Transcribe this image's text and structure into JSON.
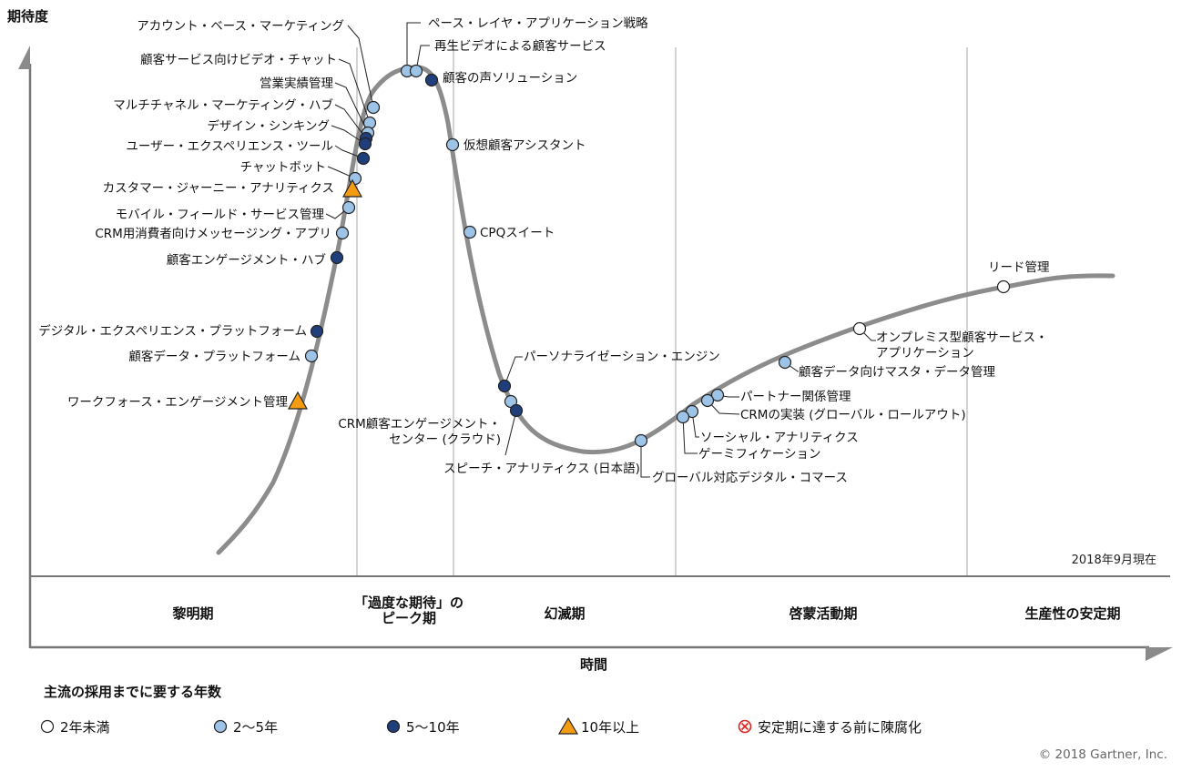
{
  "chart_data": {
    "type": "scatter",
    "title": "",
    "ylabel": "期待度",
    "xlabel": "時間",
    "as_of": "2018年9月現在",
    "copyright": "© 2018 Gartner, Inc.",
    "phases": [
      "黎明期",
      "「過度な期待」の\nピーク期",
      "幻滅期",
      "啓蒙活動期",
      "生産性の安定期"
    ],
    "legend_title": "主流の採用までに要する年数",
    "legend": [
      {
        "key": "lt2",
        "label": "2年未満"
      },
      {
        "key": "y2_5",
        "label": "2〜5年"
      },
      {
        "key": "y5_10",
        "label": "5〜10年"
      },
      {
        "key": "gt10",
        "label": "10年以上"
      },
      {
        "key": "obsolete",
        "label": "安定期に達する前に陳腐化"
      }
    ],
    "points": [
      {
        "name": "アカウント・ベース・マーケティング",
        "category": "y2_5"
      },
      {
        "name": "ペース・レイヤ・アプリケーション戦略",
        "category": "y2_5"
      },
      {
        "name": "再生ビデオによる顧客サービス",
        "category": "y2_5"
      },
      {
        "name": "顧客の声ソリューション",
        "category": "y5_10"
      },
      {
        "name": "顧客サービス向けビデオ・チャット",
        "category": "y2_5"
      },
      {
        "name": "営業実績管理",
        "category": "y2_5"
      },
      {
        "name": "マルチチャネル・マーケティング・ハブ",
        "category": "y5_10"
      },
      {
        "name": "デザイン・シンキング",
        "category": "y5_10"
      },
      {
        "name": "ユーザー・エクスペリエンス・ツール",
        "category": "y5_10"
      },
      {
        "name": "仮想顧客アシスタント",
        "category": "y2_5"
      },
      {
        "name": "チャットボット",
        "category": "y2_5"
      },
      {
        "name": "カスタマー・ジャーニー・アナリティクス",
        "category": "gt10"
      },
      {
        "name": "モバイル・フィールド・サービス管理",
        "category": "y2_5"
      },
      {
        "name": "CPQスイート",
        "category": "y2_5"
      },
      {
        "name": "CRM用消費者向けメッセージング・アプリ",
        "category": "y2_5"
      },
      {
        "name": "顧客エンゲージメント・ハブ",
        "category": "y5_10"
      },
      {
        "name": "リード管理",
        "category": "lt2"
      },
      {
        "name": "デジタル・エクスペリエンス・プラットフォーム",
        "category": "y5_10"
      },
      {
        "name": "オンプレミス型顧客サービス・\nアプリケーション",
        "category": "lt2"
      },
      {
        "name": "顧客データ・プラットフォーム",
        "category": "y2_5"
      },
      {
        "name": "パーソナライゼーション・エンジン",
        "category": "y5_10"
      },
      {
        "name": "顧客データ向けマスタ・データ管理",
        "category": "y2_5"
      },
      {
        "name": "ワークフォース・エンゲージメント管理",
        "category": "gt10"
      },
      {
        "name": "パートナー関係管理",
        "category": "y2_5"
      },
      {
        "name": "CRM顧客エンゲージメント・\nセンター (クラウド)",
        "category": "y2_5"
      },
      {
        "name": "CRMの実装 (グローバル・ロールアウト)",
        "category": "y2_5"
      },
      {
        "name": "ソーシャル・アナリティクス",
        "category": "y2_5"
      },
      {
        "name": "ゲーミフィケーション",
        "category": "y2_5"
      },
      {
        "name": "スピーチ・アナリティクス (日本語)",
        "category": "y5_10"
      },
      {
        "name": "グローバル対応デジタル・コマース",
        "category": "y2_5"
      }
    ]
  },
  "colors": {
    "curve": "#8c8c8c",
    "lt2": "#ffffff",
    "y2_5": "#9dc3e6",
    "y5_10": "#1f3e7a",
    "gt10": "#f39c12",
    "obsolete": "#e0201b",
    "axis": "#777777",
    "grid": "#d4d4d4"
  }
}
